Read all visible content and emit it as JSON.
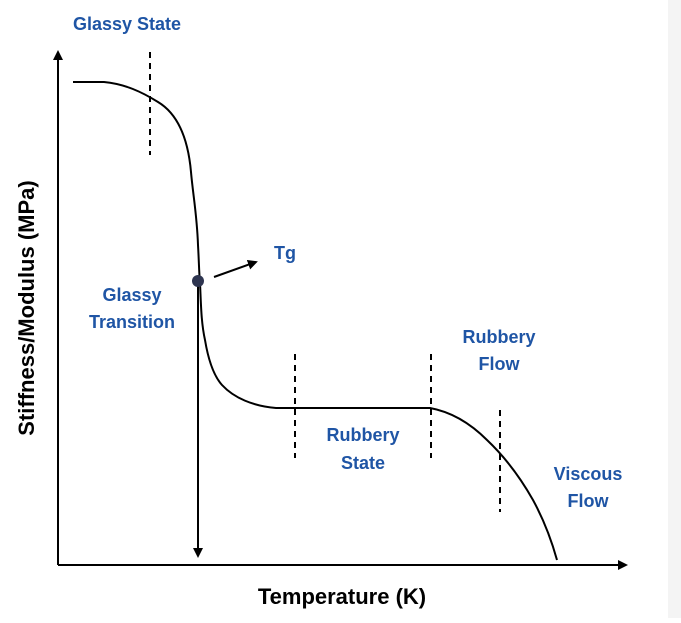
{
  "diagram": {
    "x_axis_label": "Temperature (K)",
    "y_axis_label": "Stiffness/Modulus (MPa)",
    "regions": {
      "glassy_state": [
        "Glassy State"
      ],
      "glassy_transition": [
        "Glassy",
        "Transition"
      ],
      "rubbery_state": [
        "Rubbery",
        "State"
      ],
      "rubbery_flow": [
        "Rubbery",
        "Flow"
      ],
      "viscous_flow": [
        "Viscous",
        "Flow"
      ]
    },
    "marker": {
      "label": "Tg"
    },
    "colors": {
      "label": "#1f55a5",
      "curve": "#000000",
      "marker": "#2e3550"
    }
  }
}
